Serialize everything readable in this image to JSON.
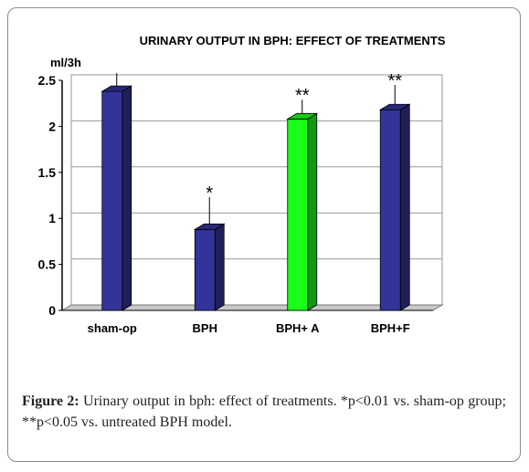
{
  "figure": {
    "caption_label": "Figure 2:",
    "caption_text": " Urinary output in bph: effect of treatments. *p<0.01 vs. sham-op group; **p<0.05 vs. untreated BPH model."
  },
  "colors": {
    "bar_default": "#33339a",
    "bar_highlight": "#1aff1a"
  },
  "chart_data": {
    "type": "bar",
    "title": "URINARY OUTPUT IN BPH: EFFECT OF TREATMENTS",
    "ylabel": "ml/3h",
    "xlabel": "",
    "ylim": [
      0,
      2.5
    ],
    "yticks": [
      "0",
      "0.5",
      "1",
      "1.5",
      "2",
      "2.5"
    ],
    "grid": true,
    "categories": [
      "sham-op",
      "BPH",
      "BPH+ A",
      "BPH+F"
    ],
    "values": [
      2.38,
      0.88,
      2.08,
      2.18
    ],
    "errors": [
      0.17,
      0.32,
      0.18,
      0.24
    ],
    "significance": [
      "",
      "*",
      "**",
      "**"
    ],
    "bar_colors": [
      "#33339a",
      "#33339a",
      "#1aff1a",
      "#33339a"
    ]
  }
}
